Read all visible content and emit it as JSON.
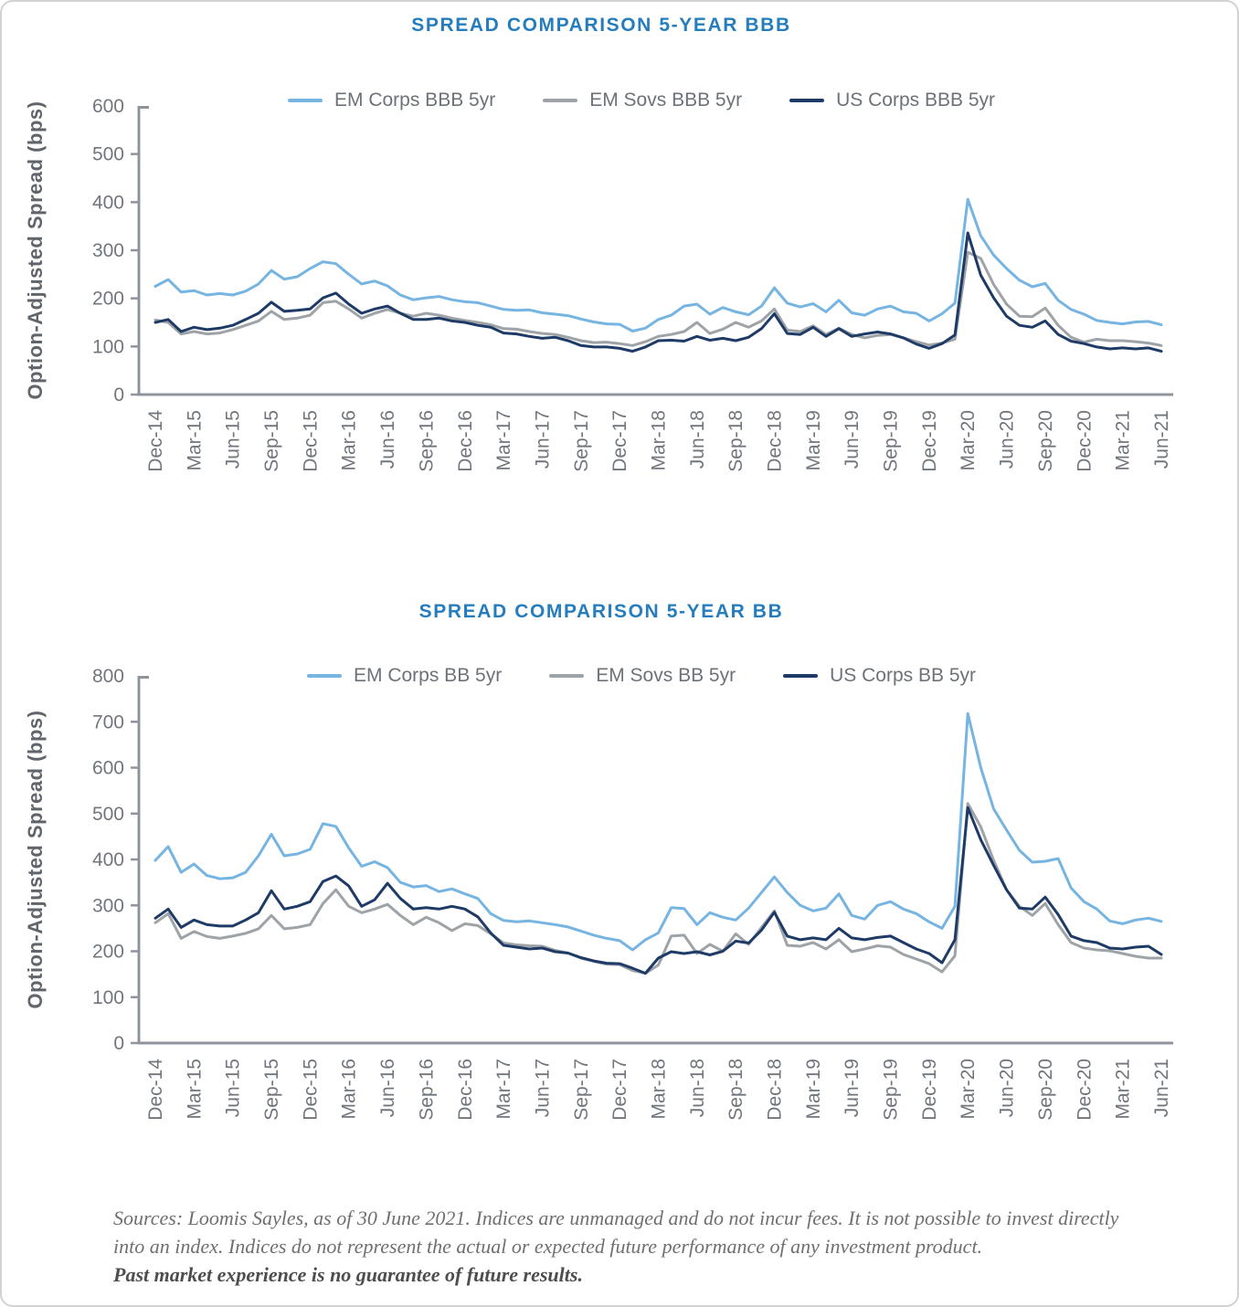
{
  "accent_title_color": "#257dbe",
  "footnote": {
    "line1": "Sources: Loomis Sayles, as of 30 June 2021. Indices are unmanaged and do not incur fees. It is not possible to invest directly",
    "line2": "into an index. Indices do not represent the actual or expected future performance of any investment product.",
    "emphasis": "Past market experience is no guarantee of future results."
  },
  "chart_data": [
    {
      "type": "line",
      "title": "SPREAD COMPARISON 5-YEAR BBB",
      "ylabel": "Option-Adjusted Spread (bps)",
      "ylim": [
        0,
        600
      ],
      "ytick_step": 100,
      "grid": false,
      "legend_position": "top",
      "x_frequency": "monthly",
      "points_per_xtick": 3,
      "xtick_labels": [
        "Dec-14",
        "Mar-15",
        "Jun-15",
        "Sep-15",
        "Dec-15",
        "Mar-16",
        "Jun-16",
        "Sep-16",
        "Dec-16",
        "Mar-17",
        "Jun-17",
        "Sep-17",
        "Dec-17",
        "Mar-18",
        "Jun-18",
        "Sep-18",
        "Dec-18",
        "Mar-19",
        "Jun-19",
        "Sep-19",
        "Dec-19",
        "Mar-20",
        "Jun-20",
        "Sep-20",
        "Dec-20",
        "Mar-21",
        "Jun-21"
      ],
      "series": [
        {
          "name": "EM Corps BBB 5yr",
          "color": "#76b4e2",
          "values": [
            225,
            239,
            213,
            216,
            207,
            210,
            207,
            215,
            230,
            258,
            240,
            245,
            262,
            276,
            272,
            250,
            230,
            236,
            226,
            207,
            197,
            201,
            204,
            197,
            193,
            191,
            184,
            177,
            175,
            176,
            170,
            167,
            164,
            157,
            151,
            147,
            146,
            132,
            138,
            156,
            165,
            184,
            188,
            167,
            181,
            172,
            166,
            184,
            222,
            190,
            182,
            189,
            172,
            196,
            170,
            165,
            178,
            184,
            172,
            169,
            153,
            168,
            190,
            406,
            330,
            290,
            262,
            238,
            224,
            231,
            196,
            177,
            167,
            154,
            150,
            147,
            151,
            152,
            145
          ]
        },
        {
          "name": "EM Sovs BBB 5yr",
          "color": "#9ea3a8",
          "values": [
            155,
            150,
            126,
            131,
            126,
            128,
            135,
            144,
            153,
            173,
            156,
            159,
            165,
            191,
            194,
            178,
            159,
            169,
            177,
            169,
            163,
            169,
            165,
            159,
            154,
            150,
            145,
            137,
            136,
            131,
            127,
            125,
            119,
            112,
            108,
            109,
            106,
            102,
            110,
            121,
            125,
            131,
            150,
            127,
            136,
            150,
            140,
            153,
            178,
            134,
            131,
            143,
            125,
            138,
            125,
            118,
            123,
            125,
            118,
            110,
            103,
            107,
            115,
            296,
            283,
            229,
            188,
            163,
            162,
            180,
            144,
            119,
            109,
            115,
            112,
            112,
            110,
            107,
            102
          ]
        },
        {
          "name": "US Corps BBB 5yr",
          "color": "#1e3a66",
          "values": [
            150,
            156,
            131,
            140,
            135,
            138,
            144,
            156,
            169,
            192,
            173,
            175,
            178,
            201,
            211,
            188,
            169,
            178,
            184,
            169,
            156,
            156,
            159,
            153,
            150,
            144,
            140,
            128,
            126,
            121,
            117,
            119,
            112,
            102,
            99,
            99,
            96,
            90,
            99,
            112,
            113,
            111,
            121,
            113,
            117,
            112,
            119,
            137,
            168,
            127,
            125,
            140,
            121,
            137,
            121,
            126,
            130,
            126,
            118,
            105,
            96,
            106,
            124,
            336,
            248,
            201,
            163,
            144,
            140,
            153,
            125,
            111,
            106,
            99,
            95,
            97,
            95,
            97,
            90
          ]
        }
      ]
    },
    {
      "type": "line",
      "title": "SPREAD COMPARISON 5-YEAR BB",
      "ylabel": "Option-Adjusted Spread (bps)",
      "ylim": [
        0,
        800
      ],
      "ytick_step": 100,
      "grid": false,
      "legend_position": "top",
      "x_frequency": "monthly",
      "points_per_xtick": 3,
      "xtick_labels": [
        "Dec-14",
        "Mar-15",
        "Jun-15",
        "Sep-15",
        "Dec-15",
        "Mar-16",
        "Jun-16",
        "Sep-16",
        "Dec-16",
        "Mar-17",
        "Jun-17",
        "Sep-17",
        "Dec-17",
        "Mar-18",
        "Jun-18",
        "Sep-18",
        "Dec-18",
        "Mar-19",
        "Jun-19",
        "Sep-19",
        "Dec-19",
        "Mar-20",
        "Jun-20",
        "Sep-20",
        "Dec-20",
        "Mar-21",
        "Jun-21"
      ],
      "series": [
        {
          "name": "EM Corps BB 5yr",
          "color": "#76b4e2",
          "values": [
            398,
            428,
            372,
            390,
            365,
            358,
            360,
            372,
            408,
            455,
            408,
            412,
            422,
            478,
            472,
            425,
            385,
            395,
            382,
            350,
            340,
            343,
            330,
            336,
            325,
            315,
            282,
            267,
            264,
            266,
            262,
            258,
            253,
            244,
            235,
            228,
            223,
            203,
            225,
            240,
            295,
            293,
            258,
            284,
            274,
            268,
            294,
            328,
            362,
            328,
            300,
            288,
            294,
            325,
            278,
            270,
            300,
            308,
            292,
            282,
            264,
            250,
            298,
            718,
            600,
            510,
            464,
            420,
            394,
            396,
            402,
            338,
            308,
            292,
            266,
            260,
            268,
            272,
            265
          ]
        },
        {
          "name": "EM Sovs BB 5yr",
          "color": "#9ea3a8",
          "values": [
            262,
            282,
            228,
            243,
            232,
            228,
            233,
            239,
            249,
            278,
            249,
            252,
            258,
            304,
            334,
            298,
            284,
            292,
            302,
            278,
            258,
            274,
            262,
            245,
            260,
            256,
            238,
            218,
            214,
            212,
            211,
            202,
            196,
            185,
            178,
            172,
            171,
            158,
            152,
            170,
            233,
            235,
            195,
            215,
            200,
            238,
            215,
            252,
            288,
            213,
            211,
            219,
            205,
            225,
            199,
            205,
            212,
            209,
            193,
            183,
            173,
            155,
            190,
            522,
            471,
            398,
            334,
            298,
            278,
            304,
            258,
            219,
            207,
            203,
            201,
            195,
            189,
            185,
            185
          ]
        },
        {
          "name": "US Corps BB 5yr",
          "color": "#1e3a66",
          "values": [
            272,
            292,
            252,
            268,
            258,
            255,
            255,
            268,
            284,
            332,
            292,
            298,
            308,
            352,
            364,
            342,
            298,
            312,
            348,
            315,
            292,
            295,
            292,
            298,
            292,
            275,
            240,
            213,
            209,
            205,
            207,
            199,
            196,
            186,
            179,
            174,
            173,
            163,
            152,
            185,
            199,
            195,
            199,
            192,
            200,
            222,
            218,
            246,
            285,
            233,
            225,
            229,
            225,
            250,
            229,
            225,
            230,
            233,
            219,
            205,
            195,
            175,
            225,
            513,
            443,
            387,
            334,
            294,
            292,
            318,
            280,
            233,
            223,
            219,
            207,
            205,
            209,
            211,
            193
          ]
        }
      ]
    }
  ]
}
